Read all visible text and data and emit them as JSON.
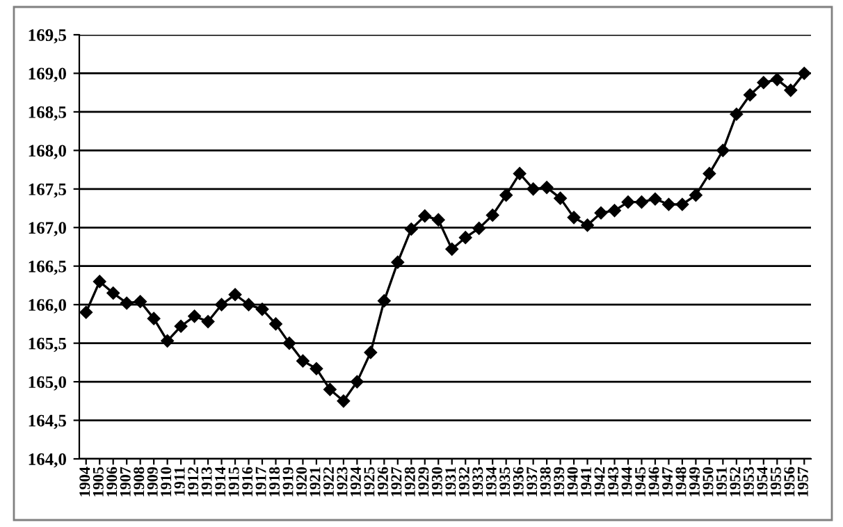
{
  "chart_data": {
    "type": "line",
    "categories": [
      "1904",
      "1905",
      "1906",
      "1907",
      "1908",
      "1909",
      "1910",
      "1911",
      "1912",
      "1913",
      "1914",
      "1915",
      "1916",
      "1917",
      "1918",
      "1919",
      "1920",
      "1921",
      "1922",
      "1923",
      "1924",
      "1925",
      "1926",
      "1927",
      "1928",
      "1929",
      "1930",
      "1931",
      "1932",
      "1933",
      "1934",
      "1935",
      "1936",
      "1937",
      "1938",
      "1939",
      "1940",
      "1941",
      "1942",
      "1943",
      "1944",
      "1945",
      "1946",
      "1947",
      "1948",
      "1949",
      "1950",
      "1951",
      "1952",
      "1953",
      "1954",
      "1955",
      "1956",
      "1957"
    ],
    "series": [
      {
        "color": "#000000",
        "values": [
          165.9,
          166.3,
          166.15,
          166.02,
          166.04,
          165.82,
          165.53,
          165.72,
          165.85,
          165.78,
          166.0,
          166.13,
          166.0,
          165.94,
          165.75,
          165.5,
          165.27,
          165.17,
          164.9,
          164.75,
          165.0,
          165.38,
          166.05,
          166.55,
          166.98,
          167.15,
          167.1,
          166.72,
          166.87,
          166.99,
          167.16,
          167.42,
          167.7,
          167.5,
          167.52,
          167.38,
          167.13,
          167.03,
          167.19,
          167.22,
          167.33,
          167.33,
          167.37,
          167.3,
          167.3,
          167.42,
          167.7,
          168.0,
          168.47,
          168.72,
          168.88,
          168.92,
          168.78,
          169.0
        ]
      }
    ],
    "ylim": [
      164.0,
      169.5
    ],
    "yticks": [
      {
        "value": 164.0,
        "label": "164,0"
      },
      {
        "value": 164.5,
        "label": "164,5"
      },
      {
        "value": 165.0,
        "label": "165,0"
      },
      {
        "value": 165.5,
        "label": "165,5"
      },
      {
        "value": 166.0,
        "label": "166,0"
      },
      {
        "value": 166.5,
        "label": "166,5"
      },
      {
        "value": 167.0,
        "label": "167,0"
      },
      {
        "value": 167.5,
        "label": "167,5"
      },
      {
        "value": 168.0,
        "label": "168,0"
      },
      {
        "value": 168.5,
        "label": "168,5"
      },
      {
        "value": 169.0,
        "label": "169,0"
      },
      {
        "value": 169.5,
        "label": "169,5"
      }
    ],
    "grid": "y",
    "marker": "diamond",
    "line_style": "solid",
    "legend": false
  }
}
